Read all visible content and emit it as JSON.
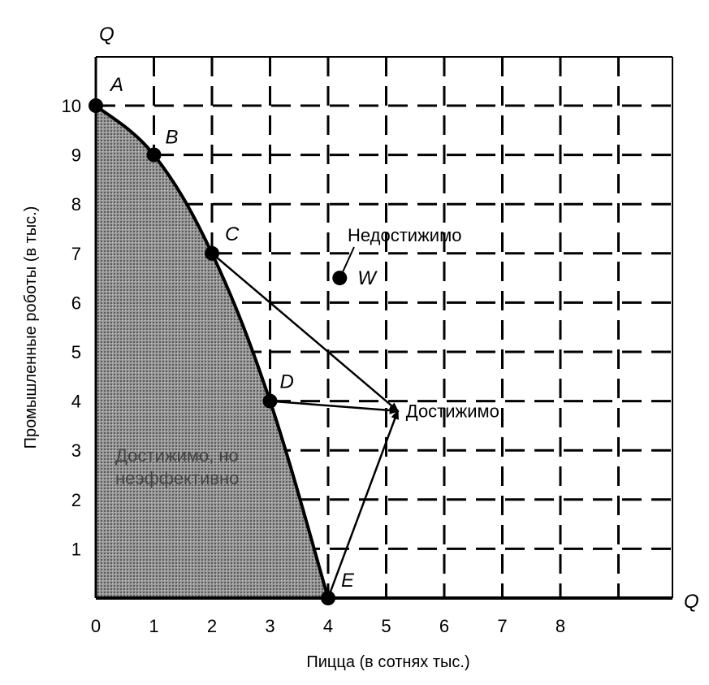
{
  "chart_data": {
    "type": "line",
    "title": "",
    "xlabel": "Пицца (в сотнях тыс.)",
    "ylabel": "Промышленные роботы (в тыс.)",
    "x_axis_end_label": "Q",
    "y_axis_end_label": "Q",
    "xlim": [
      0,
      10
    ],
    "ylim": [
      0,
      10
    ],
    "x_ticks": [
      "0",
      "1",
      "2",
      "3",
      "4",
      "5",
      "6",
      "7",
      "8"
    ],
    "y_ticks": [
      "1",
      "2",
      "3",
      "4",
      "5",
      "6",
      "7",
      "8",
      "9",
      "10"
    ],
    "grid": true,
    "series": [
      {
        "points": [
          {
            "label": "A",
            "x": 0,
            "y": 10
          },
          {
            "label": "B",
            "x": 1,
            "y": 9
          },
          {
            "label": "C",
            "x": 2,
            "y": 7
          },
          {
            "label": "D",
            "x": 3,
            "y": 4
          },
          {
            "label": "E",
            "x": 4,
            "y": 0
          }
        ]
      }
    ],
    "extra_points": [
      {
        "label": "W",
        "x": 4.2,
        "y": 6.5
      }
    ],
    "annotations": {
      "unattainable": "Недостижимо",
      "attainable": "Достижимо",
      "attainable_inefficient": [
        "Достижимо, но",
        "неэффективно"
      ]
    },
    "arrow_target": {
      "x": 5.2,
      "y": 3.8
    },
    "arrows_from": [
      "C",
      "D",
      "E"
    ],
    "colors": {
      "line": "#000000",
      "shade": "#7a7a7a",
      "grid": "#000000"
    }
  }
}
